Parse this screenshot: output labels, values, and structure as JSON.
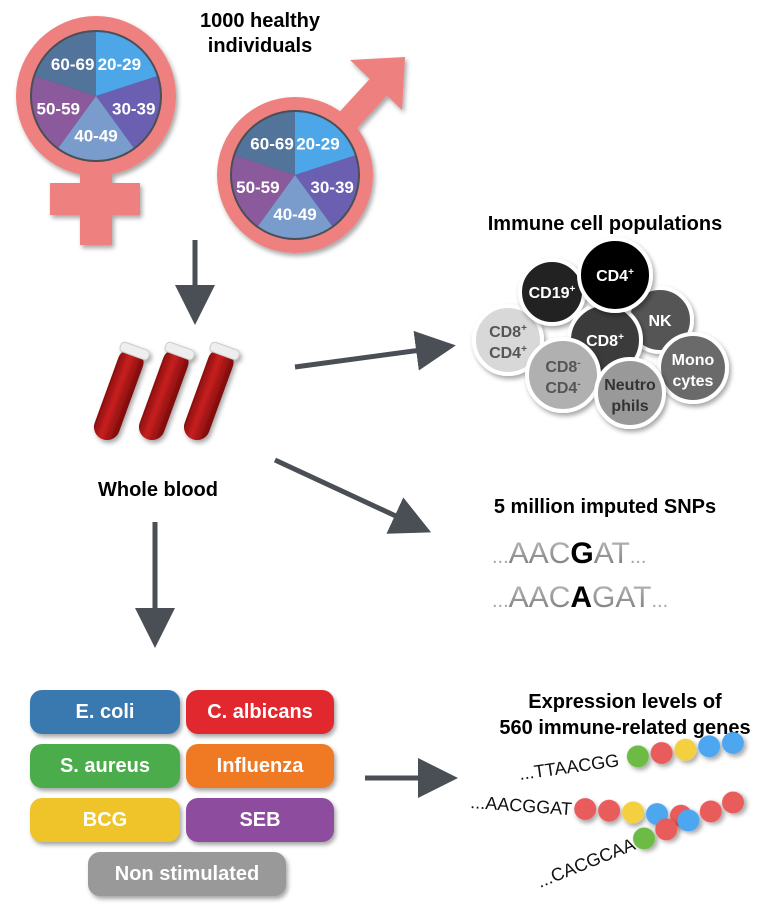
{
  "title": "1000 healthy individuals",
  "title_line1": "1000 healthy",
  "title_line2": "individuals",
  "age_groups": [
    "20-29",
    "30-39",
    "40-49",
    "50-59",
    "60-69"
  ],
  "age_colors": [
    "#4da6e8",
    "#6a5fb0",
    "#7a9ccc",
    "#8a5a9c",
    "#52739a"
  ],
  "symbol_color": "#ee8080",
  "sample_label": "Whole blood",
  "immune": {
    "title": "Immune cell populations",
    "cells": [
      {
        "name": "CD19",
        "sup": "+",
        "line2": "",
        "line2sup": "",
        "color": "#222222",
        "text": "#ffffff"
      },
      {
        "name": "CD4",
        "sup": "+",
        "line2": "",
        "line2sup": "",
        "color": "#000000",
        "text": "#ffffff"
      },
      {
        "name": "NK",
        "sup": "",
        "line2": "",
        "line2sup": "",
        "color": "#555555",
        "text": "#ffffff"
      },
      {
        "name": "CD8",
        "sup": "+",
        "line2": "CD4",
        "line2sup": "+",
        "color": "#d8d8d8",
        "text": "#555555"
      },
      {
        "name": "CD8",
        "sup": "+",
        "line2": "",
        "line2sup": "",
        "color": "#3a3a3a",
        "text": "#ffffff"
      },
      {
        "name": "CD8",
        "sup": "-",
        "line2": "CD4",
        "line2sup": "-",
        "color": "#b0b0b0",
        "text": "#555555"
      },
      {
        "name": "Neutro",
        "sup": "",
        "line2": "phils",
        "line2sup": "",
        "color": "#999999",
        "text": "#333333"
      },
      {
        "name": "Mono",
        "sup": "",
        "line2": "cytes",
        "line2sup": "",
        "color": "#6a6a6a",
        "text": "#ffffff"
      }
    ]
  },
  "snps": {
    "title": "5 million imputed SNPs",
    "rows": [
      {
        "pre": "...",
        "left": "AAC",
        "variant": "G",
        "right": "AT",
        "post": "..."
      },
      {
        "pre": "...",
        "left": "AAC",
        "variant": "A",
        "right": "GAT",
        "post": "..."
      }
    ]
  },
  "stimuli": [
    {
      "label": "E. coli",
      "color": "#3a78b0"
    },
    {
      "label": "C. albicans",
      "color": "#e0282e"
    },
    {
      "label": "S. aureus",
      "color": "#4aac4a"
    },
    {
      "label": "Influenza",
      "color": "#f07a24"
    },
    {
      "label": "BCG",
      "color": "#eec42a"
    },
    {
      "label": "SEB",
      "color": "#8e4c9e"
    },
    {
      "label": "Non stimulated",
      "color": "#999999"
    }
  ],
  "expression": {
    "title_line1": "Expression levels of",
    "title_line2": "560 immune-related genes",
    "rows": [
      {
        "seq": "...TTAACGG",
        "beads": [
          "#6cbb45",
          "#e85c5c",
          "#f4d03f",
          "#4da6f0",
          "#4da6f0"
        ]
      },
      {
        "seq": "...AACGGAT",
        "beads": [
          "#e85c5c",
          "#e85c5c",
          "#f4d03f",
          "#4da6f0",
          "#e85c5c"
        ]
      },
      {
        "seq": "...CACGCAA",
        "beads": [
          "#6cbb45",
          "#e85c5c",
          "#4da6f0",
          "#e85c5c",
          "#e85c5c"
        ]
      }
    ]
  }
}
